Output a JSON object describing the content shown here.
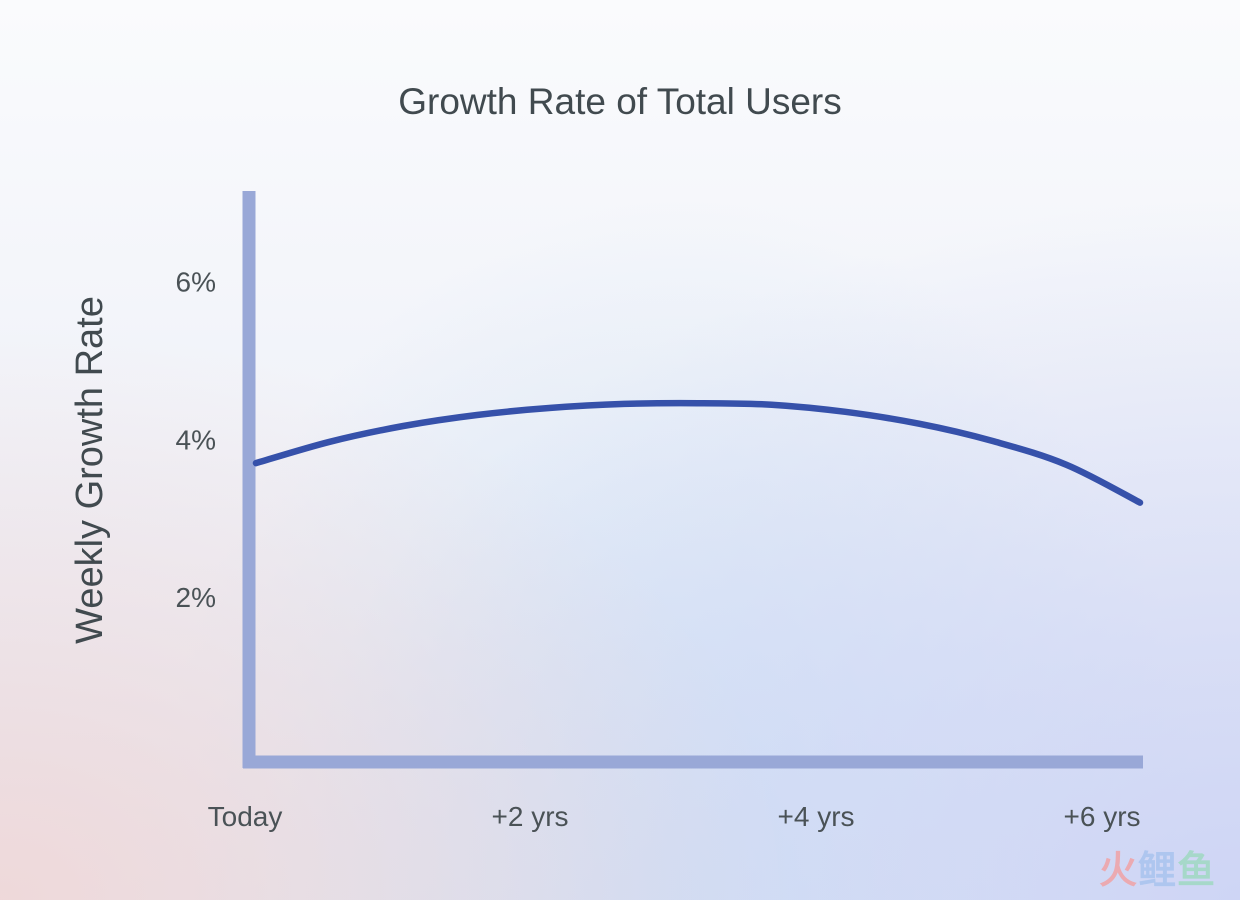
{
  "chart_data": {
    "type": "line",
    "title": "Growth Rate of Total Users",
    "xlabel": "",
    "ylabel": "Weekly Growth Rate",
    "x_ticks": [
      "Today",
      "+2 yrs",
      "+4 yrs",
      "+6 yrs"
    ],
    "y_ticks": [
      "2%",
      "4%",
      "6%"
    ],
    "y_tick_values": [
      2,
      4,
      6
    ],
    "x_unit": "years",
    "ylim": [
      0,
      7.2
    ],
    "xlim": [
      0,
      6
    ],
    "grid": false,
    "legend": "none",
    "series": [
      {
        "x": [
          0,
          0.5,
          1,
          1.5,
          2,
          2.5,
          3,
          3.5,
          4,
          4.5,
          5,
          5.5,
          6
        ],
        "values": [
          3.7,
          3.97,
          4.17,
          4.31,
          4.4,
          4.45,
          4.46,
          4.44,
          4.35,
          4.2,
          3.98,
          3.68,
          3.2
        ]
      }
    ],
    "colors": {
      "line": "#3651aa",
      "axis": "#99a8d7",
      "text": "#414a4f"
    }
  },
  "watermark": {
    "part1": "火",
    "part2": "鲤",
    "part3": "鱼"
  }
}
